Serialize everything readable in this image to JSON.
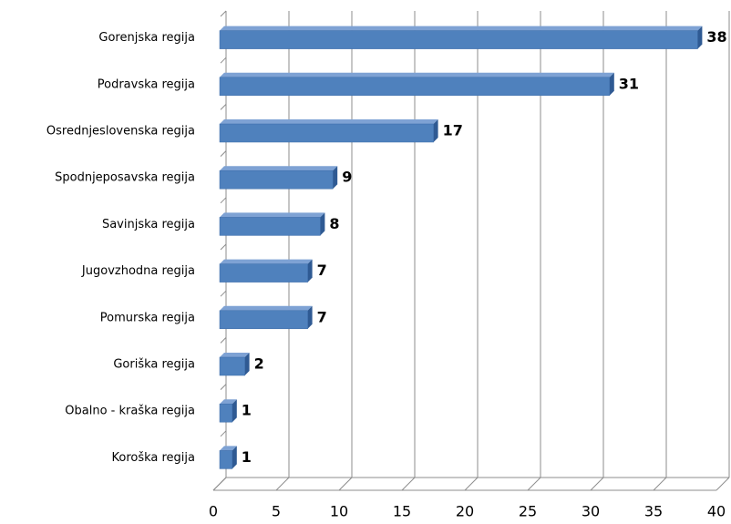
{
  "chart_data": {
    "type": "bar",
    "orientation": "horizontal",
    "categories": [
      "Gorenjska regija",
      "Podravska regija",
      "Osrednjeslovenska regija",
      "Spodnjeposavska regija",
      "Savinjska regija",
      "Jugovzhodna regija",
      "Pomurska regija",
      "Goriška regija",
      "Obalno - kraška regija",
      "Koroška regija"
    ],
    "values": [
      38,
      31,
      17,
      9,
      8,
      7,
      7,
      2,
      1,
      1
    ],
    "color": "#4f81bd",
    "xlim": [
      0,
      40
    ],
    "xticks": [
      0,
      5,
      10,
      15,
      20,
      25,
      30,
      35,
      40
    ],
    "grid": true
  }
}
